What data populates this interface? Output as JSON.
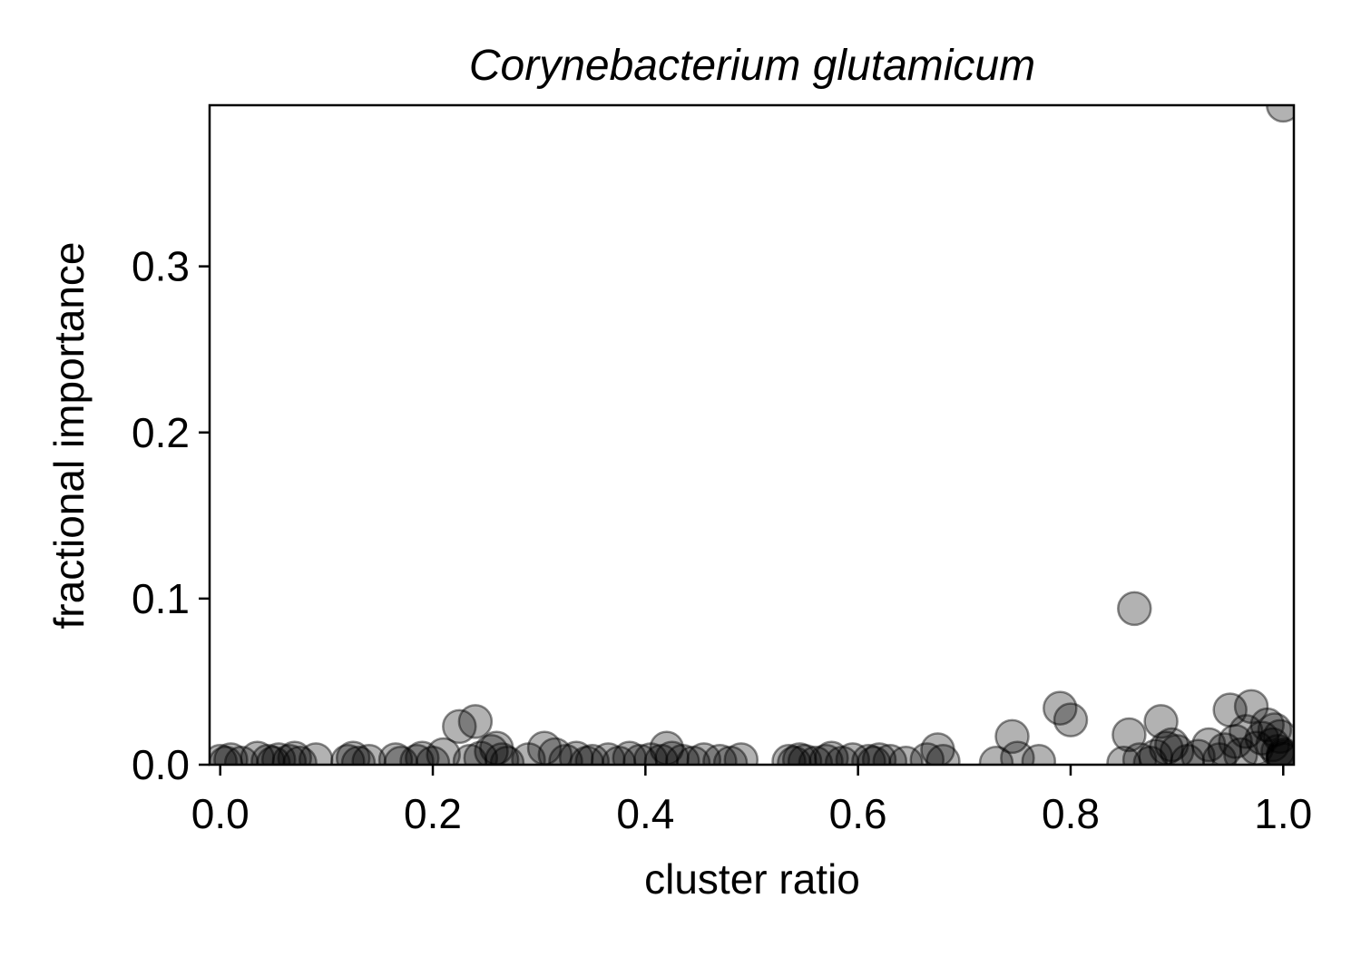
{
  "chart_data": {
    "type": "scatter",
    "title": "Corynebacterium glutamicum",
    "xlabel": "cluster ratio",
    "ylabel": "fractional importance",
    "xlim": [
      -0.01,
      1.01
    ],
    "ylim": [
      0.0,
      0.397
    ],
    "xticks": [
      "0.0",
      "0.2",
      "0.4",
      "0.6",
      "0.8",
      "1.0"
    ],
    "yticks": [
      "0.0",
      "0.1",
      "0.2",
      "0.3"
    ],
    "grid": false,
    "marker_color": "#000000",
    "marker_alpha": 0.3,
    "series": [
      {
        "points": [
          [
            0.0,
            0.002
          ],
          [
            0.005,
            0.001
          ],
          [
            0.01,
            0.003
          ],
          [
            0.02,
            0.001
          ],
          [
            0.035,
            0.004
          ],
          [
            0.045,
            0.002
          ],
          [
            0.05,
            0.001
          ],
          [
            0.055,
            0.003
          ],
          [
            0.065,
            0.002
          ],
          [
            0.07,
            0.004
          ],
          [
            0.075,
            0.001
          ],
          [
            0.09,
            0.003
          ],
          [
            0.12,
            0.002
          ],
          [
            0.125,
            0.004
          ],
          [
            0.13,
            0.001
          ],
          [
            0.14,
            0.002
          ],
          [
            0.165,
            0.003
          ],
          [
            0.17,
            0.001
          ],
          [
            0.185,
            0.002
          ],
          [
            0.19,
            0.004
          ],
          [
            0.2,
            0.001
          ],
          [
            0.21,
            0.006
          ],
          [
            0.225,
            0.023
          ],
          [
            0.235,
            0.002
          ],
          [
            0.24,
            0.026
          ],
          [
            0.245,
            0.004
          ],
          [
            0.255,
            0.008
          ],
          [
            0.26,
            0.01
          ],
          [
            0.265,
            0.003
          ],
          [
            0.27,
            0.001
          ],
          [
            0.29,
            0.003
          ],
          [
            0.305,
            0.01
          ],
          [
            0.315,
            0.006
          ],
          [
            0.325,
            0.002
          ],
          [
            0.335,
            0.004
          ],
          [
            0.345,
            0.001
          ],
          [
            0.35,
            0.002
          ],
          [
            0.365,
            0.003
          ],
          [
            0.375,
            0.001
          ],
          [
            0.385,
            0.004
          ],
          [
            0.395,
            0.002
          ],
          [
            0.405,
            0.003
          ],
          [
            0.415,
            0.002
          ],
          [
            0.42,
            0.01
          ],
          [
            0.425,
            0.004
          ],
          [
            0.435,
            0.002
          ],
          [
            0.445,
            0.001
          ],
          [
            0.455,
            0.003
          ],
          [
            0.47,
            0.002
          ],
          [
            0.48,
            0.001
          ],
          [
            0.49,
            0.003
          ],
          [
            0.535,
            0.002
          ],
          [
            0.54,
            0.001
          ],
          [
            0.545,
            0.003
          ],
          [
            0.55,
            0.002
          ],
          [
            0.56,
            0.001
          ],
          [
            0.57,
            0.002
          ],
          [
            0.575,
            0.004
          ],
          [
            0.585,
            0.001
          ],
          [
            0.595,
            0.003
          ],
          [
            0.61,
            0.002
          ],
          [
            0.615,
            0.001
          ],
          [
            0.62,
            0.003
          ],
          [
            0.63,
            0.002
          ],
          [
            0.645,
            0.001
          ],
          [
            0.665,
            0.003
          ],
          [
            0.675,
            0.009
          ],
          [
            0.68,
            0.002
          ],
          [
            0.73,
            0.001
          ],
          [
            0.745,
            0.017
          ],
          [
            0.75,
            0.004
          ],
          [
            0.77,
            0.002
          ],
          [
            0.79,
            0.034
          ],
          [
            0.8,
            0.027
          ],
          [
            0.85,
            0.001
          ],
          [
            0.855,
            0.018
          ],
          [
            0.86,
            0.094
          ],
          [
            0.865,
            0.003
          ],
          [
            0.875,
            0.001
          ],
          [
            0.88,
            0.005
          ],
          [
            0.885,
            0.026
          ],
          [
            0.89,
            0.01
          ],
          [
            0.895,
            0.012
          ],
          [
            0.9,
            0.008
          ],
          [
            0.91,
            0.002
          ],
          [
            0.92,
            0.005
          ],
          [
            0.93,
            0.012
          ],
          [
            0.94,
            0.003
          ],
          [
            0.945,
            0.009
          ],
          [
            0.95,
            0.033
          ],
          [
            0.955,
            0.014
          ],
          [
            0.96,
            0.006
          ],
          [
            0.965,
            0.02
          ],
          [
            0.97,
            0.035
          ],
          [
            0.975,
            0.01
          ],
          [
            0.98,
            0.016
          ],
          [
            0.985,
            0.024
          ],
          [
            0.99,
            0.012
          ],
          [
            0.992,
            0.021
          ],
          [
            0.995,
            0.008
          ],
          [
            0.997,
            0.017
          ],
          [
            1.0,
            0.005
          ],
          [
            1.0,
            0.003
          ],
          [
            1.0,
            0.006
          ],
          [
            1.0,
            0.004
          ],
          [
            1.0,
            0.397
          ]
        ]
      }
    ]
  }
}
